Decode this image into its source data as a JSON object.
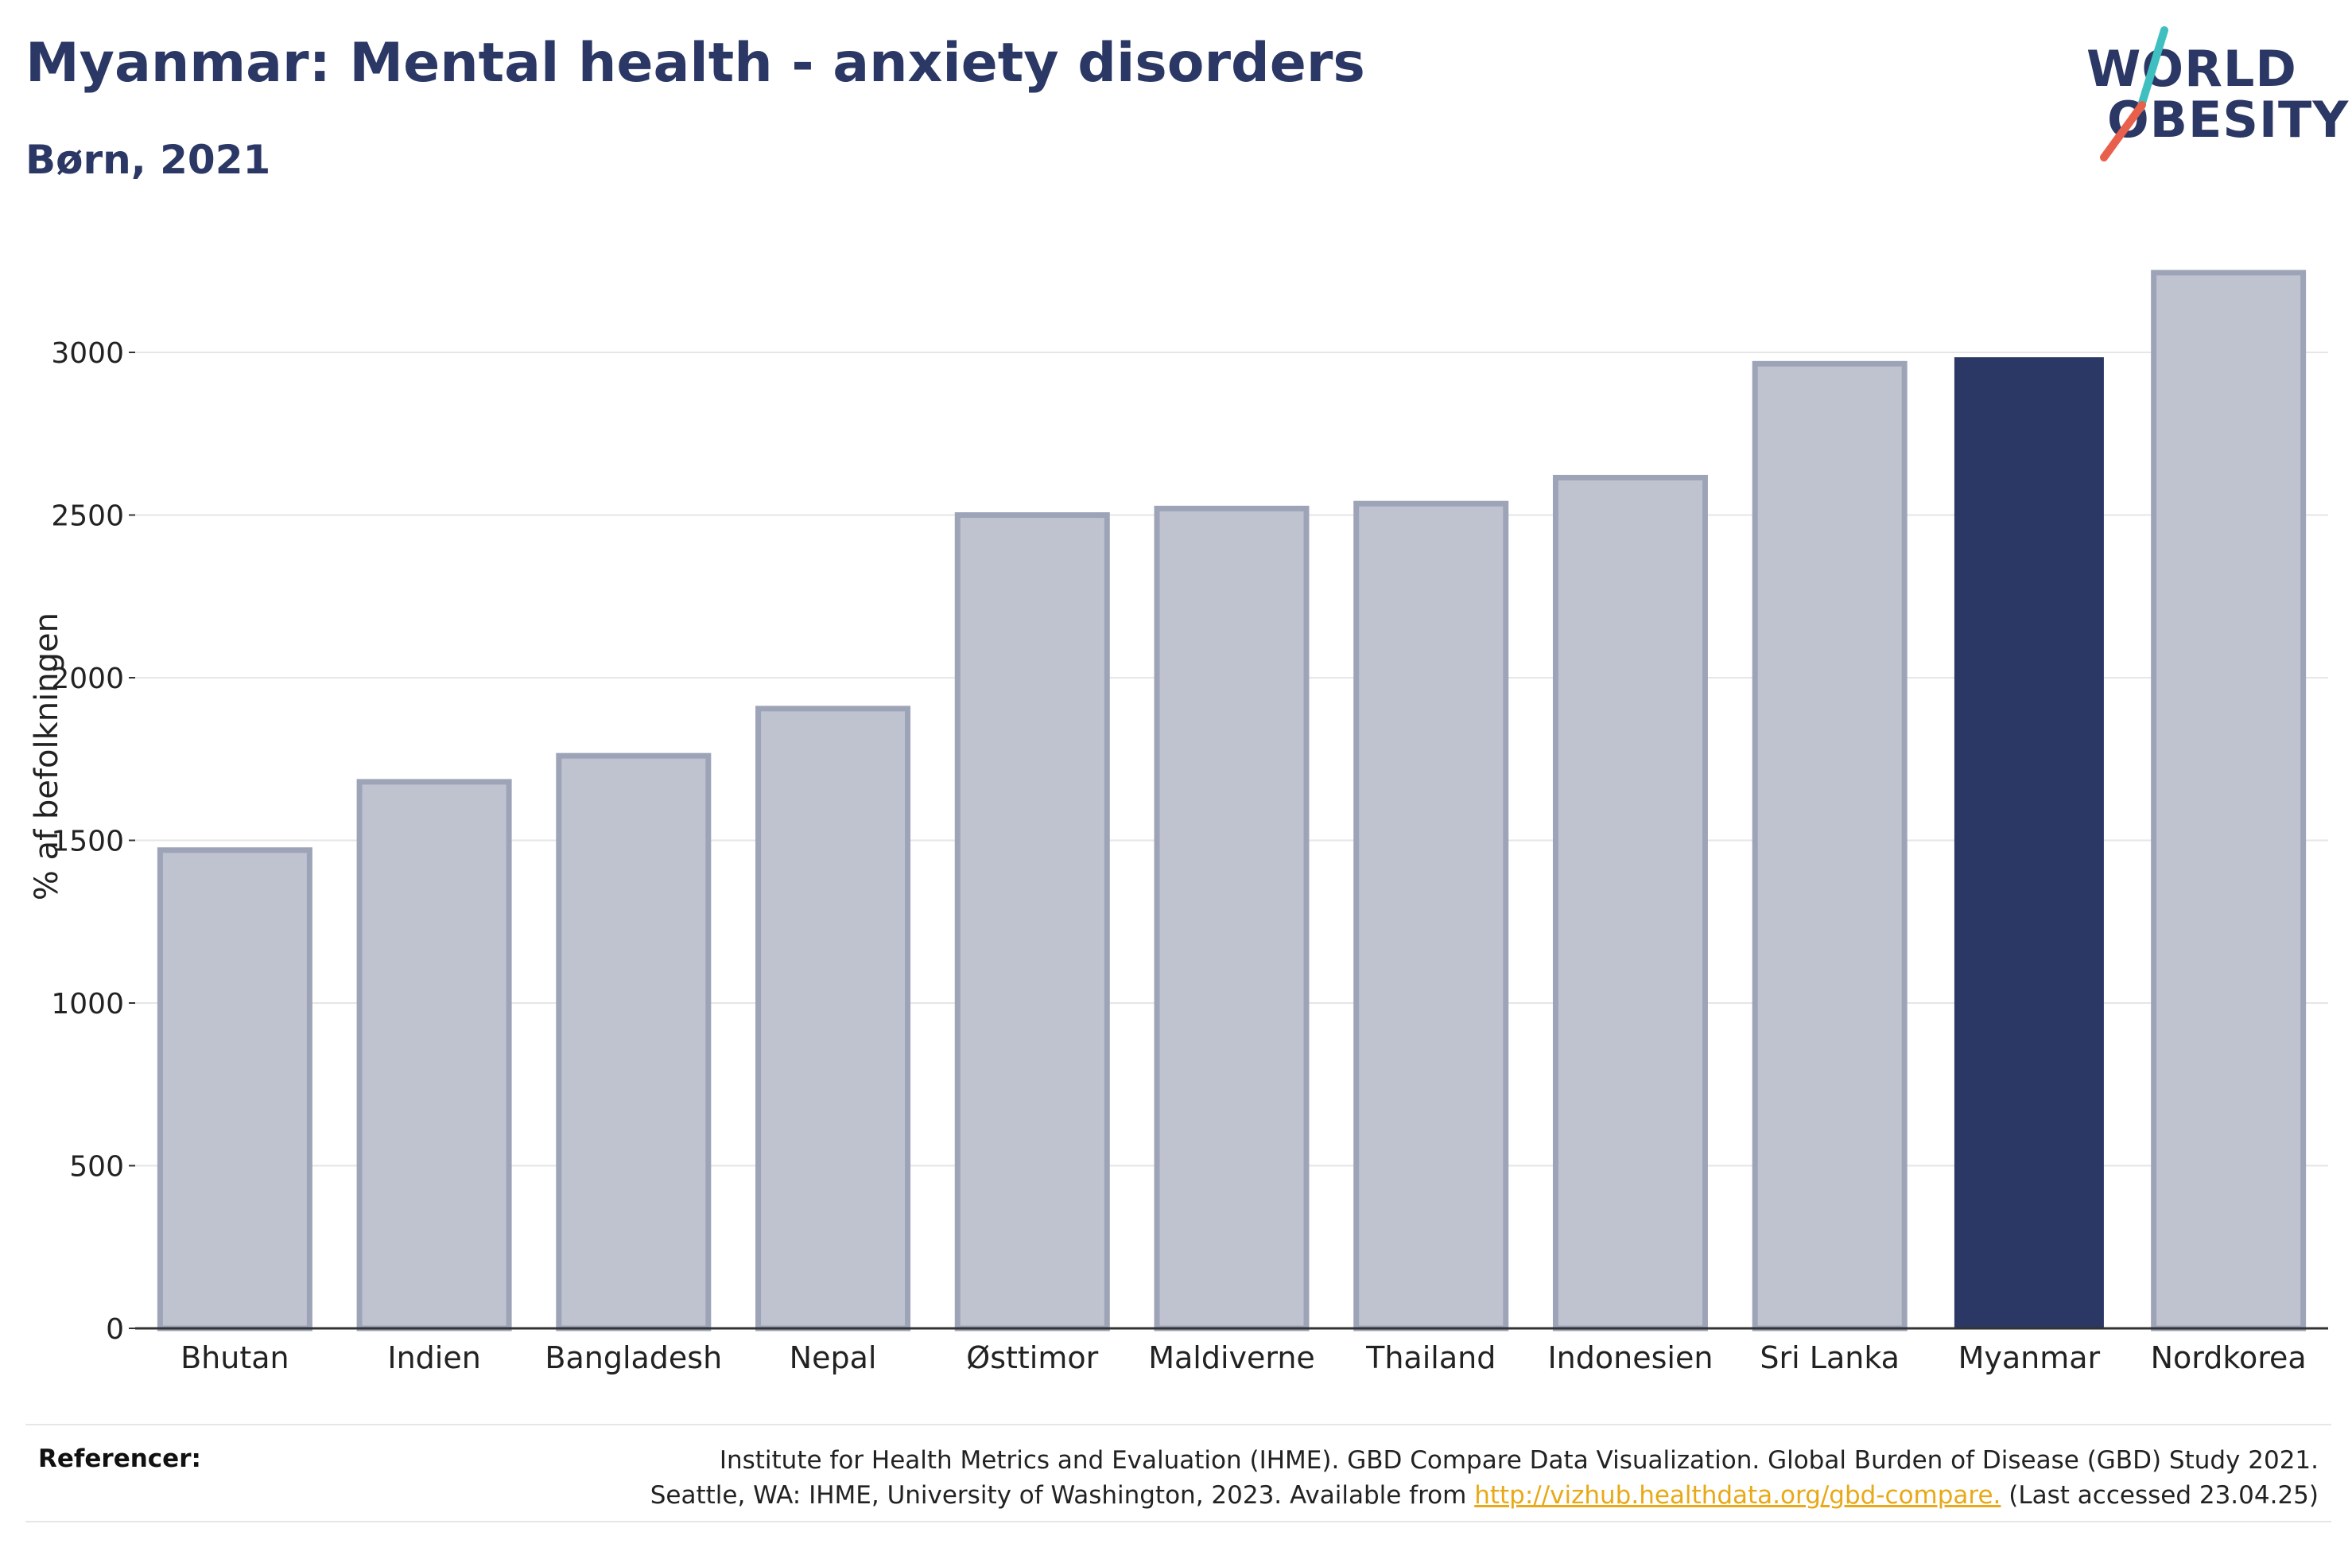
{
  "header": {
    "title": "Myanmar: Mental health - anxiety disorders",
    "subtitle": "Børn, 2021"
  },
  "logo": {
    "line1": "WORLD",
    "line2": "OBESITY",
    "colors": {
      "text": "#2b3764",
      "slash_top": "#3fbfbf",
      "slash_bottom": "#e8604c"
    }
  },
  "chart_data": {
    "type": "bar",
    "title": "Myanmar: Mental health - anxiety disorders",
    "subtitle": "Børn, 2021",
    "xlabel": "",
    "ylabel": "% af befolkningen",
    "categories": [
      "Bhutan",
      "Indien",
      "Bangladesh",
      "Nepal",
      "Østtimor",
      "Maldiverne",
      "Thailand",
      "Indonesien",
      "Sri Lanka",
      "Myanmar",
      "Nordkorea"
    ],
    "values": [
      1470,
      1680,
      1760,
      1905,
      2500,
      2520,
      2535,
      2615,
      2965,
      2985,
      3245
    ],
    "highlight": "Myanmar",
    "ylim": [
      0,
      3450
    ],
    "yticks": [
      0,
      500,
      1000,
      1500,
      2000,
      2500,
      3000
    ],
    "grid": true,
    "colors": {
      "highlight": "#2b3764",
      "other_fill": "#bfc3d0",
      "other_stroke": "#9ea4b8"
    }
  },
  "references": {
    "label": "Referencer:",
    "line1": "Institute for Health Metrics and Evaluation (IHME). GBD Compare Data Visualization. Global Burden of Disease (GBD) Study 2021.",
    "line2_prefix": "Seattle, WA: IHME, University of Washington, 2023. Available from ",
    "link_text": "http://vizhub.healthdata.org/gbd-compare.",
    "line2_suffix": " (Last accessed 23.04.25)"
  }
}
